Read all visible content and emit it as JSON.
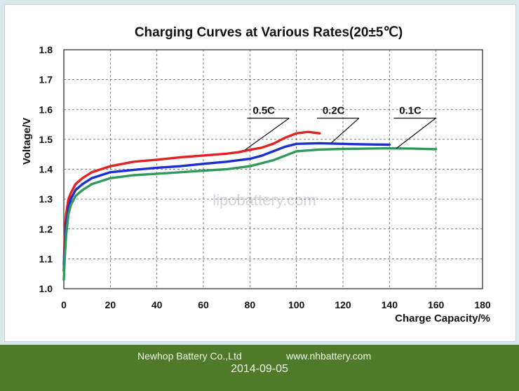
{
  "chart_data": {
    "type": "line",
    "title": "Charging Curves at Various Rates(20±5℃)",
    "xlabel": "Charge Capacity/%",
    "ylabel": "Voltage/V",
    "xlim": [
      0,
      180
    ],
    "ylim": [
      1.0,
      1.8
    ],
    "xticks": [
      0,
      20,
      40,
      60,
      80,
      100,
      120,
      140,
      160,
      180
    ],
    "yticks": [
      1.0,
      1.1,
      1.2,
      1.3,
      1.4,
      1.5,
      1.6,
      1.7,
      1.8
    ],
    "grid": true,
    "watermark": "lipobattery.com",
    "series": [
      {
        "name": "0.5C",
        "color": "#e32222",
        "x": [
          0,
          0.5,
          1,
          2,
          3,
          5,
          8,
          12,
          20,
          30,
          40,
          50,
          60,
          70,
          75,
          80,
          85,
          88,
          90,
          95,
          100,
          105,
          110
        ],
        "y": [
          1.08,
          1.2,
          1.25,
          1.3,
          1.32,
          1.35,
          1.37,
          1.39,
          1.41,
          1.425,
          1.432,
          1.44,
          1.446,
          1.452,
          1.457,
          1.465,
          1.472,
          1.48,
          1.485,
          1.505,
          1.52,
          1.525,
          1.52
        ]
      },
      {
        "name": "0.2C",
        "color": "#1a2ed2",
        "x": [
          0,
          0.5,
          1,
          2,
          3,
          5,
          8,
          12,
          20,
          30,
          40,
          50,
          60,
          70,
          80,
          85,
          90,
          95,
          100,
          110,
          120,
          130,
          140
        ],
        "y": [
          1.06,
          1.15,
          1.21,
          1.27,
          1.3,
          1.33,
          1.35,
          1.37,
          1.39,
          1.398,
          1.405,
          1.41,
          1.418,
          1.425,
          1.435,
          1.445,
          1.46,
          1.475,
          1.485,
          1.487,
          1.485,
          1.483,
          1.482
        ]
      },
      {
        "name": "0.1C",
        "color": "#2f9a5c",
        "x": [
          0,
          0.5,
          1,
          2,
          3,
          5,
          8,
          12,
          20,
          30,
          40,
          50,
          60,
          70,
          80,
          85,
          90,
          95,
          100,
          110,
          120,
          130,
          140,
          150,
          160
        ],
        "y": [
          1.03,
          1.12,
          1.18,
          1.25,
          1.28,
          1.31,
          1.33,
          1.35,
          1.37,
          1.38,
          1.385,
          1.39,
          1.395,
          1.4,
          1.41,
          1.42,
          1.43,
          1.445,
          1.46,
          1.466,
          1.468,
          1.469,
          1.47,
          1.469,
          1.467
        ]
      }
    ],
    "annotations": [
      {
        "text": "0.5C",
        "series": "0.5C",
        "label_x": 80,
        "label_y": 1.585,
        "point_x": 78,
        "point_y": 1.465
      },
      {
        "text": "0.2C",
        "series": "0.2C",
        "label_x": 110,
        "label_y": 1.585,
        "point_x": 115,
        "point_y": 1.488
      },
      {
        "text": "0.1C",
        "series": "0.1C",
        "label_x": 143,
        "label_y": 1.585,
        "point_x": 143,
        "point_y": 1.47
      }
    ]
  },
  "footer": {
    "company": "Newhop Battery Co.,Ltd",
    "website": "www.nhbattery.com",
    "date": "2014-09-05"
  }
}
